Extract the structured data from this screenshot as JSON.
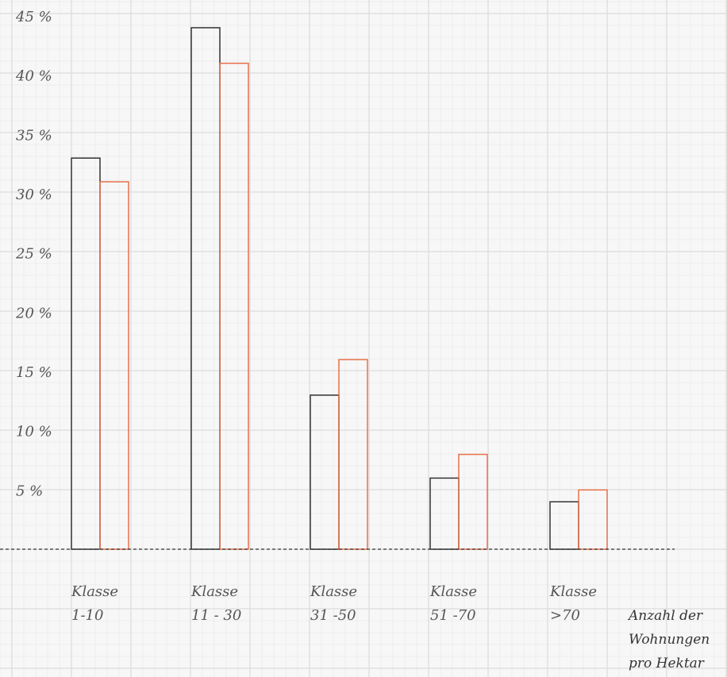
{
  "chart_data": {
    "type": "bar",
    "categories": [
      [
        "Klasse",
        "1-10"
      ],
      [
        "Klasse",
        "11 - 30"
      ],
      [
        "Klasse",
        "31 -50"
      ],
      [
        "Klasse",
        "51 -70"
      ],
      [
        "Klasse",
        ">70"
      ]
    ],
    "series": [
      {
        "color": "#333333",
        "values": [
          33,
          44,
          13,
          6,
          4
        ]
      },
      {
        "color": "#e8714a",
        "values": [
          31,
          41,
          16,
          8,
          5
        ]
      }
    ],
    "yticks": [
      "5 %",
      "10 %",
      "15 %",
      "20 %",
      "25 %",
      "30 %",
      "35 %",
      "40 %",
      "45 %"
    ],
    "ytick_values": [
      5,
      10,
      15,
      20,
      25,
      30,
      35,
      40,
      45
    ],
    "ylim": [
      0,
      45
    ],
    "xlabel": [
      "Anzahl der",
      "Wohnungen",
      "pro Hektar"
    ],
    "grid": true,
    "baseline": "dashed"
  }
}
